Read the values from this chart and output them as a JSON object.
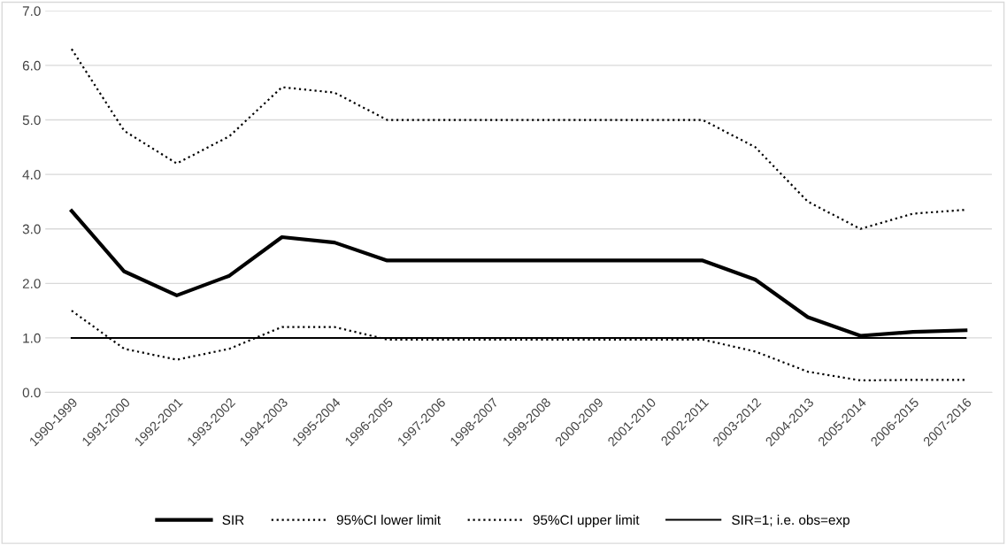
{
  "chart_data": {
    "type": "line",
    "categories": [
      "1990-1999",
      "1991-2000",
      "1992-2001",
      "1993-2002",
      "1994-2003",
      "1995-2004",
      "1996-2005",
      "1997-2006",
      "1998-2007",
      "1999-2008",
      "2000-2009",
      "2001-2010",
      "2002-2011",
      "2003-2012",
      "2004-2013",
      "2005-2014",
      "2006-2015",
      "2007-2016"
    ],
    "series": [
      {
        "name": "SIR",
        "color": "#000000",
        "line_style": "solid",
        "values": [
          3.33,
          2.22,
          1.78,
          2.14,
          2.85,
          2.75,
          2.42,
          2.42,
          2.42,
          2.42,
          2.42,
          2.42,
          2.42,
          2.07,
          1.38,
          1.04,
          1.11,
          1.14
        ]
      },
      {
        "name": "95%CI lower limit",
        "color": "#000000",
        "line_style": "dotted",
        "values": [
          1.5,
          0.8,
          0.6,
          0.8,
          1.2,
          1.2,
          0.97,
          0.97,
          0.97,
          0.97,
          0.97,
          0.97,
          0.97,
          0.75,
          0.38,
          0.22,
          0.23,
          0.23
        ]
      },
      {
        "name": "95%CI upper limit",
        "color": "#000000",
        "line_style": "dotted",
        "values": [
          6.3,
          4.8,
          4.2,
          4.7,
          5.6,
          5.5,
          5.0,
          5.0,
          5.0,
          5.0,
          5.0,
          5.0,
          5.0,
          4.5,
          3.5,
          3.0,
          3.28,
          3.35
        ]
      },
      {
        "name": "SIR=1; i.e. obs=exp",
        "color": "#000000",
        "line_style": "solid",
        "values": [
          1,
          1,
          1,
          1,
          1,
          1,
          1,
          1,
          1,
          1,
          1,
          1,
          1,
          1,
          1,
          1,
          1,
          1
        ]
      }
    ],
    "ylim": [
      0,
      7
    ],
    "yticks": [
      {
        "value": 0,
        "label": "0.0"
      },
      {
        "value": 1,
        "label": "1.0"
      },
      {
        "value": 2,
        "label": "2.0"
      },
      {
        "value": 3,
        "label": "3.0"
      },
      {
        "value": 4,
        "label": "4.0"
      },
      {
        "value": 5,
        "label": "5.0"
      },
      {
        "value": 6,
        "label": "6.0"
      },
      {
        "value": 7,
        "label": "7.0"
      }
    ],
    "grid": "y",
    "legend": "bottom",
    "marker": "none"
  }
}
